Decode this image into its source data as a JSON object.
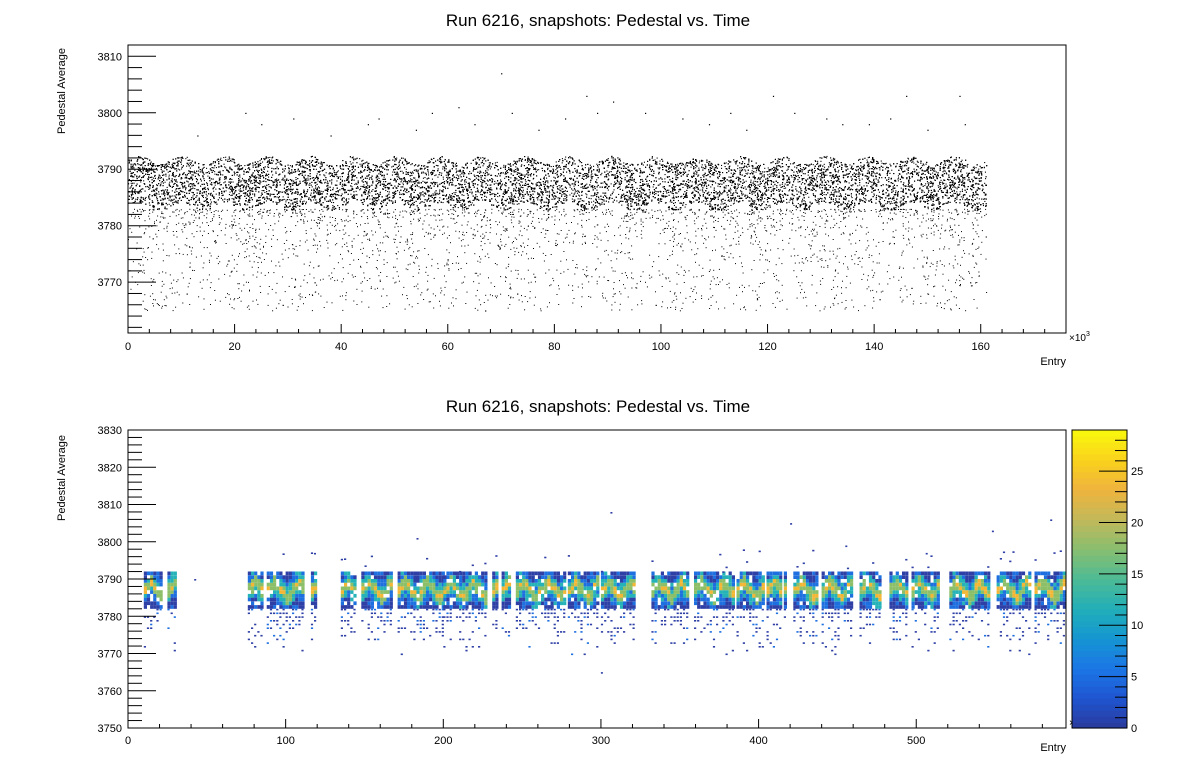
{
  "chart_data": [
    {
      "type": "scatter",
      "title": "Run 6216, snapshots: Pedestal vs. Time",
      "xlabel": "Entry",
      "ylabel": "Pedestal Average",
      "x_multiplier": "×10",
      "x_multiplier_exp": "3",
      "xlim": [
        0,
        176
      ],
      "ylim": [
        3761,
        3812
      ],
      "x_ticks": [
        0,
        20,
        40,
        60,
        80,
        100,
        120,
        140,
        160
      ],
      "y_ticks": [
        3770,
        3780,
        3790,
        3800,
        3810
      ],
      "data_range_x": [
        0,
        161
      ],
      "core_band_y": [
        3783,
        3792
      ],
      "tail_range_y": [
        3765,
        3783
      ],
      "outliers": [
        {
          "x": 5,
          "y": 3789
        },
        {
          "x": 13,
          "y": 3796
        },
        {
          "x": 22,
          "y": 3800
        },
        {
          "x": 25,
          "y": 3798
        },
        {
          "x": 31,
          "y": 3799
        },
        {
          "x": 38,
          "y": 3796
        },
        {
          "x": 45,
          "y": 3798
        },
        {
          "x": 47,
          "y": 3799
        },
        {
          "x": 54,
          "y": 3797
        },
        {
          "x": 57,
          "y": 3800
        },
        {
          "x": 62,
          "y": 3801
        },
        {
          "x": 65,
          "y": 3798
        },
        {
          "x": 70,
          "y": 3807
        },
        {
          "x": 72,
          "y": 3800
        },
        {
          "x": 77,
          "y": 3797
        },
        {
          "x": 82,
          "y": 3799
        },
        {
          "x": 86,
          "y": 3803
        },
        {
          "x": 88,
          "y": 3800
        },
        {
          "x": 91,
          "y": 3802
        },
        {
          "x": 97,
          "y": 3800
        },
        {
          "x": 104,
          "y": 3799
        },
        {
          "x": 109,
          "y": 3798
        },
        {
          "x": 113,
          "y": 3800
        },
        {
          "x": 116,
          "y": 3797
        },
        {
          "x": 121,
          "y": 3803
        },
        {
          "x": 125,
          "y": 3800
        },
        {
          "x": 131,
          "y": 3799
        },
        {
          "x": 134,
          "y": 3798
        },
        {
          "x": 139,
          "y": 3798
        },
        {
          "x": 143,
          "y": 3799
        },
        {
          "x": 146,
          "y": 3803
        },
        {
          "x": 150,
          "y": 3797
        },
        {
          "x": 156,
          "y": 3803
        },
        {
          "x": 157,
          "y": 3798
        },
        {
          "x": 11,
          "y": 3768
        },
        {
          "x": 29,
          "y": 3766
        },
        {
          "x": 35,
          "y": 3770
        },
        {
          "x": 67,
          "y": 3765
        },
        {
          "x": 73,
          "y": 3768
        },
        {
          "x": 99,
          "y": 3766
        },
        {
          "x": 118,
          "y": 3767
        },
        {
          "x": 141,
          "y": 3767
        },
        {
          "x": 147,
          "y": 3769
        },
        {
          "x": 158,
          "y": 3770
        }
      ]
    },
    {
      "type": "heatmap",
      "title": "Run 6216, snapshots: Pedestal vs. Time",
      "xlabel": "Entry",
      "ylabel": "Pedestal Average",
      "x_multiplier": "×10",
      "x_multiplier_exp": "3",
      "xlim": [
        0,
        595
      ],
      "ylim": [
        3750,
        3830
      ],
      "x_ticks": [
        0,
        100,
        200,
        300,
        400,
        500
      ],
      "y_ticks": [
        3750,
        3760,
        3770,
        3780,
        3790,
        3800,
        3810,
        3820,
        3830
      ],
      "z_range": [
        0,
        29
      ],
      "z_ticks": [
        0,
        5,
        10,
        15,
        20,
        25
      ],
      "occupied_x_segments": [
        [
          10,
          21
        ],
        [
          25,
          30
        ],
        [
          76,
          86
        ],
        [
          88,
          104
        ],
        [
          104,
          111
        ],
        [
          116,
          120
        ],
        [
          135,
          144
        ],
        [
          148,
          167
        ],
        [
          171,
          200
        ],
        [
          200,
          228
        ],
        [
          231,
          234
        ],
        [
          237,
          242
        ],
        [
          246,
          262
        ],
        [
          262,
          278
        ],
        [
          279,
          298
        ],
        [
          300,
          322
        ],
        [
          332,
          356
        ],
        [
          359,
          385
        ],
        [
          386,
          404
        ],
        [
          405,
          415
        ],
        [
          416,
          418
        ],
        [
          422,
          438
        ],
        [
          440,
          460
        ],
        [
          464,
          478
        ],
        [
          483,
          495
        ],
        [
          497,
          515
        ],
        [
          521,
          546
        ],
        [
          551,
          572
        ],
        [
          575,
          595
        ]
      ],
      "core_band_y": [
        3782,
        3792
      ],
      "peak_band_y": [
        3784,
        3790
      ],
      "tail_range_y": [
        3768,
        3782
      ],
      "colors": {
        "low": "#2E3FA6",
        "mid_low": "#1E6FE0",
        "mid": "#25B3B8",
        "mid_high": "#8CBF68",
        "high": "#F3B735",
        "max": "#F9F90E"
      }
    }
  ]
}
